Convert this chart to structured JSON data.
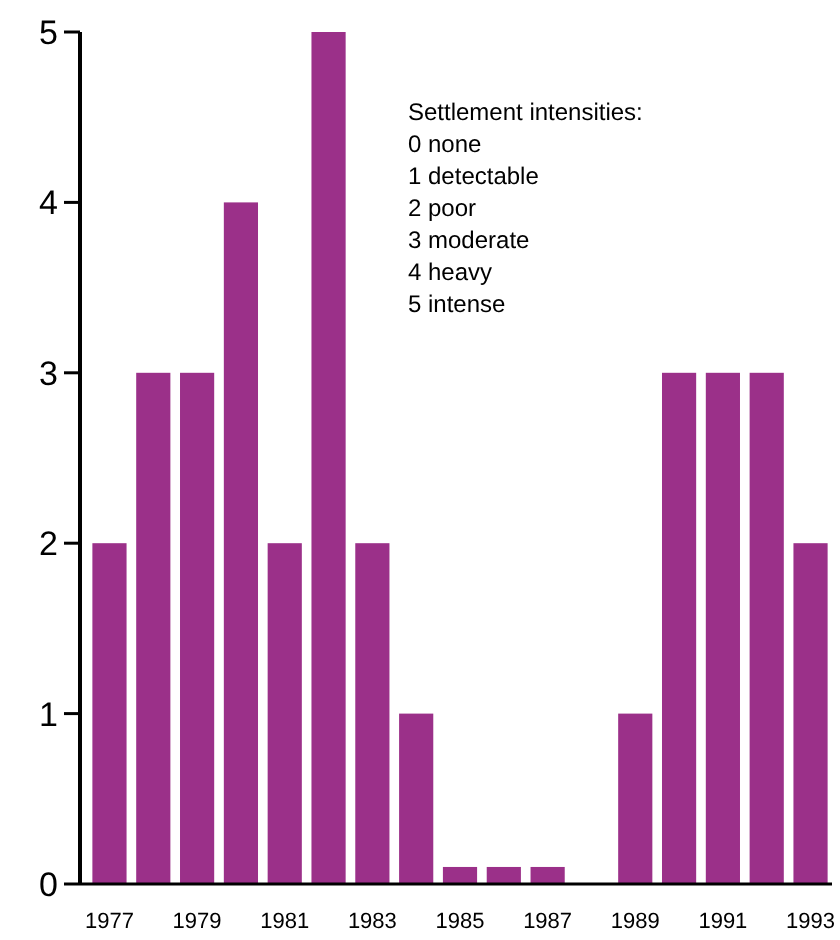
{
  "chart_data": {
    "type": "bar",
    "categories": [
      "1977",
      null,
      "1979",
      null,
      "1981",
      null,
      "1983",
      null,
      "1985",
      null,
      "1987",
      null,
      "1989",
      null,
      "1991",
      null,
      "1993"
    ],
    "values": [
      2,
      3,
      3,
      4,
      2,
      5,
      2,
      1,
      0.1,
      0.1,
      0.1,
      null,
      1,
      3,
      3,
      3,
      2
    ],
    "color": "#9b3089",
    "ylim": [
      0,
      5
    ],
    "yticks": [
      0,
      1,
      2,
      3,
      4,
      5
    ],
    "grid": false,
    "annotations": [
      "Settlement intensities:",
      "0 none",
      "1 detectable",
      "2 poor",
      "3 moderate",
      "4 heavy",
      "5 intense"
    ]
  }
}
